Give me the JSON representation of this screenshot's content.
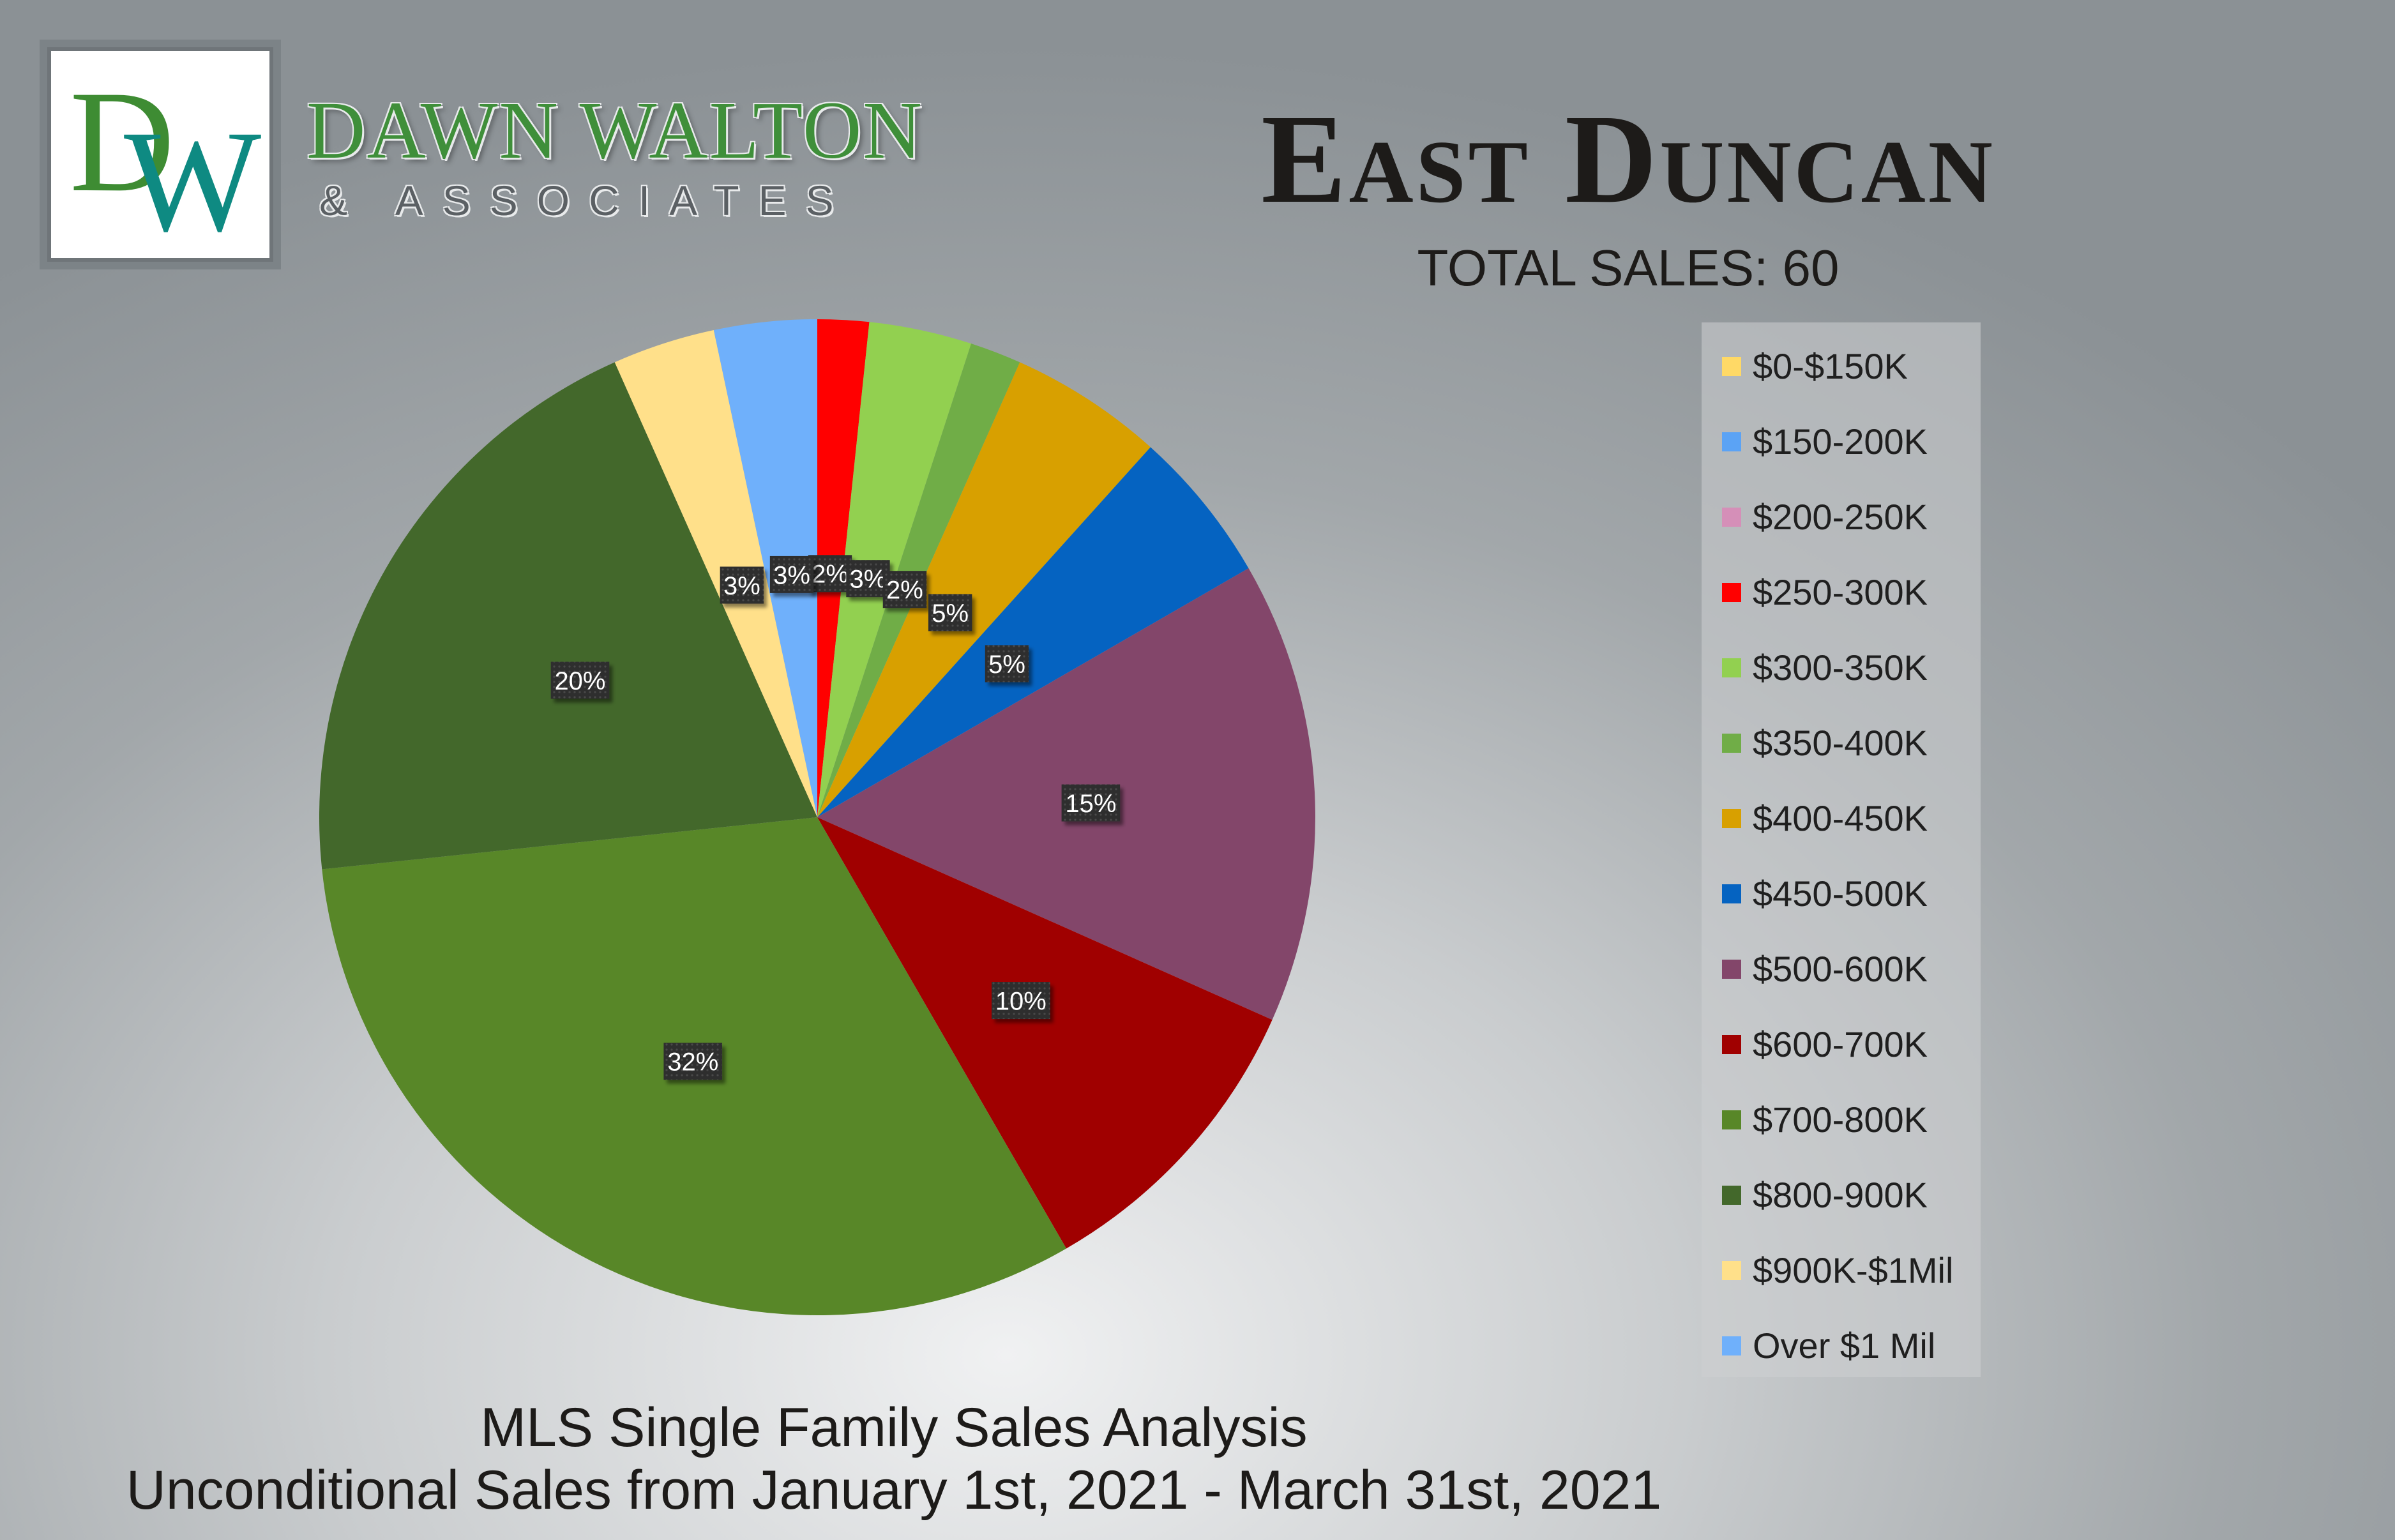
{
  "brand": {
    "name": "DAWN WALTON",
    "sub": "& ASSOCIATES",
    "logo_text": "DW"
  },
  "header": {
    "title": "East Duncan",
    "total_sales": "TOTAL SALES: 60"
  },
  "footer": {
    "line1": "MLS Single Family Sales Analysis",
    "line2": "Unconditional Sales from January 1st, 2021 - March 31st, 2021"
  },
  "chart_data": {
    "type": "pie",
    "title": "East Duncan",
    "subtitle": "TOTAL SALES: 60",
    "categories": [
      "$0-$150K",
      "$150-200K",
      "$200-250K",
      "$250-300K",
      "$300-350K",
      "$350-400K",
      "$400-450K",
      "$450-500K",
      "$500-600K",
      "$600-700K",
      "$700-800K",
      "$800-900K",
      "$900K-$1Mil",
      "Over $1 Mil"
    ],
    "values": [
      0,
      0,
      0,
      1,
      2,
      1,
      3,
      3,
      9,
      6,
      19,
      12,
      2,
      2
    ],
    "data_labels": [
      "",
      "",
      "",
      "2%",
      "3%",
      "2%",
      "5%",
      "5%",
      "15%",
      "10%",
      "32%",
      "20%",
      "3%",
      "3%"
    ],
    "colors": [
      "#ffd966",
      "#5ba3f5",
      "#d58fb8",
      "#ff0000",
      "#92d050",
      "#70ad47",
      "#d8a000",
      "#0563c1",
      "#83466a",
      "#a00000",
      "#588728",
      "#43682b",
      "#ffe08a",
      "#6fb0fb"
    ],
    "legend_position": "right",
    "start_angle_deg": 0,
    "direction": "clockwise"
  }
}
